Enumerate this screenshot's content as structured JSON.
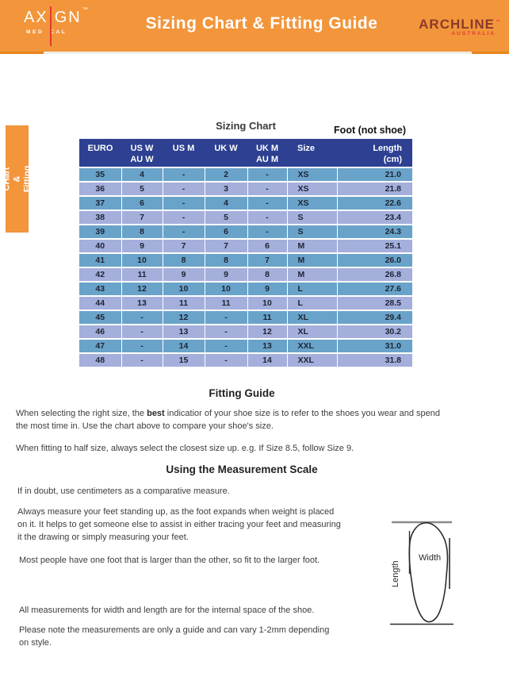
{
  "banner": {
    "title": "Sizing Chart & Fitting Guide",
    "axign": {
      "part1": "AX",
      "part2": "GN",
      "tm": "™",
      "sub1": "MED",
      "sub2": "CAL"
    },
    "archline": {
      "name": "ARCHLINE",
      "tm": "™",
      "region": "AUSTRALIA"
    }
  },
  "side_tab": {
    "label": "Sizing CHart\n& Fitting Guide"
  },
  "table": {
    "title": "Sizing Chart",
    "right_note": "Foot (not shoe)",
    "headers": [
      {
        "top": "EURO"
      },
      {
        "top": "US W",
        "bottom": "AU W"
      },
      {
        "top": "US M"
      },
      {
        "top": "UK W"
      },
      {
        "top": "UK M",
        "bottom": "AU M"
      },
      {
        "top": "Size"
      },
      {
        "top": "Length",
        "bottom": "(cm)"
      }
    ],
    "rows": [
      [
        "35",
        "4",
        "-",
        "2",
        "-",
        "XS",
        "21.0"
      ],
      [
        "36",
        "5",
        "-",
        "3",
        "-",
        "XS",
        "21.8"
      ],
      [
        "37",
        "6",
        "-",
        "4",
        "-",
        "XS",
        "22.6"
      ],
      [
        "38",
        "7",
        "-",
        "5",
        "-",
        "S",
        "23.4"
      ],
      [
        "39",
        "8",
        "-",
        "6",
        "-",
        "S",
        "24.3"
      ],
      [
        "40",
        "9",
        "7",
        "7",
        "6",
        "M",
        "25.1"
      ],
      [
        "41",
        "10",
        "8",
        "8",
        "7",
        "M",
        "26.0"
      ],
      [
        "42",
        "11",
        "9",
        "9",
        "8",
        "M",
        "26.8"
      ],
      [
        "43",
        "12",
        "10",
        "10",
        "9",
        "L",
        "27.6"
      ],
      [
        "44",
        "13",
        "11",
        "11",
        "10",
        "L",
        "28.5"
      ],
      [
        "45",
        "-",
        "12",
        "-",
        "11",
        "XL",
        "29.4"
      ],
      [
        "46",
        "-",
        "13",
        "-",
        "12",
        "XL",
        "30.2"
      ],
      [
        "47",
        "-",
        "14",
        "-",
        "13",
        "XXL",
        "31.0"
      ],
      [
        "48",
        "-",
        "15",
        "-",
        "14",
        "XXL",
        "31.8"
      ]
    ]
  },
  "fitting_guide": {
    "heading": "Fitting Guide",
    "p1_before": "When selecting the right size, the ",
    "p1_bold": "best",
    "p1_after": " indicatior of your shoe size is to refer to the shoes you wear and spend\nthe most time in. Use the chart above to compare your shoe's size.",
    "p2": "When fitting to half size, always select the closest size up. e.g. If Size 8.5, follow Size 9."
  },
  "measurement": {
    "heading": "Using the Measurement Scale",
    "p1": "If in doubt, use centimeters as a comparative measure.",
    "p2": "Always measure your feet standing up, as the foot expands when weight is placed\non it. It helps to get someone else to assist in either tracing your feet and measuring\nit the drawing or simply measuring your feet.",
    "p3": "Most people have one foot that is larger than the other, so fit to the larger foot.",
    "p4": "All measurements for width and length are for the internal space of the shoe.",
    "p5": "Please note the measurements are only a guide and can vary 1-2mm depending\non style.",
    "diagram": {
      "width_label": "Width",
      "length_label": "Length"
    }
  },
  "colors": {
    "accent_orange": "#F2953B",
    "underline_orange": "#E8861C",
    "header_navy": "#2D4091",
    "row_steel_blue": "#69A3C9",
    "row_periwinkle": "#A4AFDB",
    "brand_red": "#E23B2E",
    "archline_maroon": "#8C392B"
  }
}
